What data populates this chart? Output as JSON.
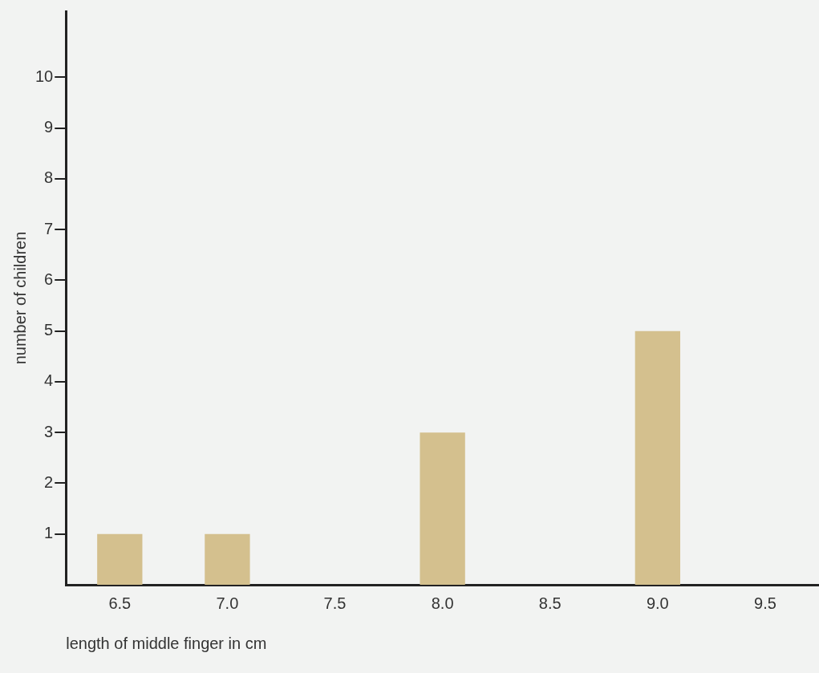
{
  "chart_data": {
    "type": "bar",
    "xlabel": "length of middle finger in cm",
    "ylabel": "number of children",
    "categories": [
      "6.5",
      "7.0",
      "7.5",
      "8.0",
      "8.5",
      "9.0",
      "9.5"
    ],
    "values": [
      1,
      1,
      0,
      3,
      0,
      5,
      0
    ],
    "color": "#d4c08e",
    "ylim": [
      0,
      11.3
    ],
    "yticks": [
      1,
      2,
      3,
      4,
      5,
      6,
      7,
      8,
      9,
      10
    ],
    "grid": false,
    "legend": false
  }
}
